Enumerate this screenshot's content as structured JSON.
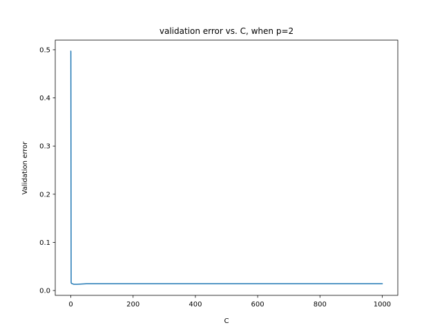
{
  "chart_data": {
    "type": "line",
    "title": "validation error vs. C, when p=2",
    "xlabel": "C",
    "ylabel": "Validation error",
    "xlim": [
      -50,
      1050
    ],
    "ylim": [
      -0.01,
      0.52
    ],
    "xticks": [
      0,
      200,
      400,
      600,
      800,
      1000
    ],
    "yticks": [
      0.0,
      0.1,
      0.2,
      0.3,
      0.4,
      0.5
    ],
    "xtick_labels": [
      "0",
      "200",
      "400",
      "600",
      "800",
      "1000"
    ],
    "ytick_labels": [
      "0.0",
      "0.1",
      "0.2",
      "0.3",
      "0.4",
      "0.5"
    ],
    "grid": false,
    "legend": "none",
    "series": [
      {
        "color": "#1f77b4",
        "x": [
          0.001,
          0.01,
          0.1,
          1,
          2,
          5,
          10,
          20,
          50,
          100,
          200,
          500,
          1000
        ],
        "y": [
          0.497,
          0.497,
          0.497,
          0.016,
          0.015,
          0.014,
          0.013,
          0.013,
          0.014,
          0.014,
          0.014,
          0.014,
          0.014
        ]
      }
    ]
  }
}
